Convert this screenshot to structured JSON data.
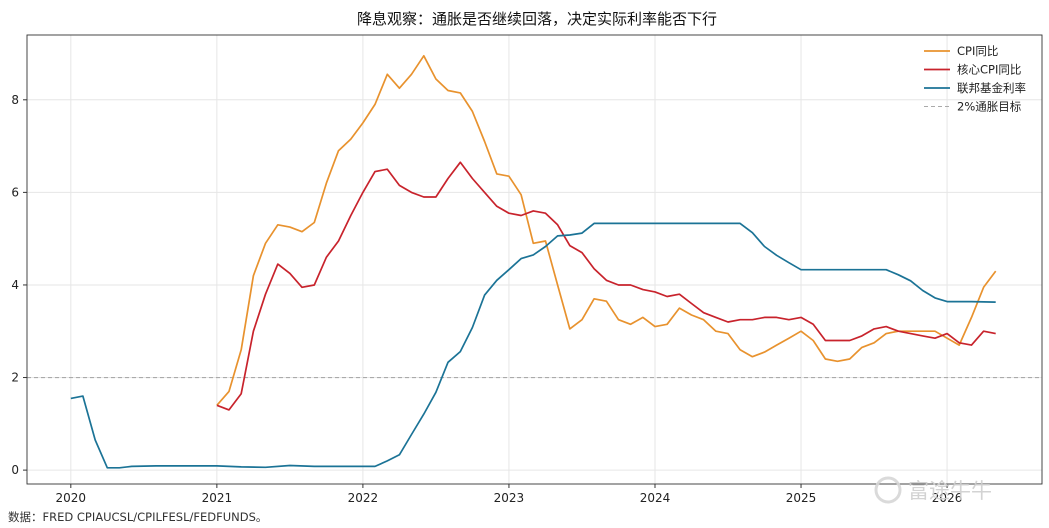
{
  "chart_data": {
    "type": "line",
    "title": "降息观察：通胀是否继续回落，决定实际利率能否下行",
    "xlabel": "",
    "ylabel": "",
    "xlim": [
      2019.7,
      2026.65
    ],
    "ylim": [
      -0.3,
      9.4
    ],
    "x_ticks": [
      "2020",
      "2021",
      "2022",
      "2023",
      "2024",
      "2025",
      "2026"
    ],
    "y_ticks": [
      "0",
      "2",
      "4",
      "6",
      "8"
    ],
    "grid": true,
    "legend_position": "top-right",
    "source": "数据：FRED CPIAUCSL/CPILFESL/FEDFUNDS。",
    "watermark": "富途牛牛",
    "series": [
      {
        "name": "CPI同比",
        "color": "#E8922E",
        "points": [
          [
            2021.0,
            1.4
          ],
          [
            2021.083,
            1.7
          ],
          [
            2021.167,
            2.6
          ],
          [
            2021.25,
            4.2
          ],
          [
            2021.333,
            4.9
          ],
          [
            2021.417,
            5.3
          ],
          [
            2021.5,
            5.25
          ],
          [
            2021.583,
            5.15
          ],
          [
            2021.667,
            5.35
          ],
          [
            2021.75,
            6.2
          ],
          [
            2021.833,
            6.9
          ],
          [
            2021.917,
            7.15
          ],
          [
            2022.0,
            7.5
          ],
          [
            2022.083,
            7.9
          ],
          [
            2022.167,
            8.55
          ],
          [
            2022.25,
            8.25
          ],
          [
            2022.333,
            8.55
          ],
          [
            2022.417,
            8.95
          ],
          [
            2022.5,
            8.45
          ],
          [
            2022.583,
            8.2
          ],
          [
            2022.667,
            8.15
          ],
          [
            2022.75,
            7.75
          ],
          [
            2022.833,
            7.1
          ],
          [
            2022.917,
            6.4
          ],
          [
            2023.0,
            6.35
          ],
          [
            2023.083,
            5.95
          ],
          [
            2023.167,
            4.9
          ],
          [
            2023.25,
            4.95
          ],
          [
            2023.333,
            4.0
          ],
          [
            2023.417,
            3.05
          ],
          [
            2023.5,
            3.25
          ],
          [
            2023.583,
            3.7
          ],
          [
            2023.667,
            3.65
          ],
          [
            2023.75,
            3.25
          ],
          [
            2023.833,
            3.15
          ],
          [
            2023.917,
            3.3
          ],
          [
            2024.0,
            3.1
          ],
          [
            2024.083,
            3.15
          ],
          [
            2024.167,
            3.5
          ],
          [
            2024.25,
            3.35
          ],
          [
            2024.333,
            3.25
          ],
          [
            2024.417,
            3.0
          ],
          [
            2024.5,
            2.95
          ],
          [
            2024.583,
            2.6
          ],
          [
            2024.667,
            2.45
          ],
          [
            2024.75,
            2.55
          ],
          [
            2024.833,
            2.7
          ],
          [
            2024.917,
            2.85
          ],
          [
            2025.0,
            3.0
          ],
          [
            2025.083,
            2.8
          ],
          [
            2025.167,
            2.4
          ],
          [
            2025.25,
            2.35
          ],
          [
            2025.333,
            2.4
          ],
          [
            2025.417,
            2.65
          ],
          [
            2025.5,
            2.75
          ],
          [
            2025.583,
            2.95
          ],
          [
            2025.667,
            3.0
          ],
          [
            2025.75,
            3.0
          ],
          [
            2025.833,
            3.0
          ],
          [
            2025.917,
            3.0
          ],
          [
            2026.0,
            2.85
          ],
          [
            2026.083,
            2.7
          ],
          [
            2026.167,
            3.3
          ],
          [
            2026.25,
            3.95
          ],
          [
            2026.333,
            4.3
          ]
        ]
      },
      {
        "name": "核心CPI同比",
        "color": "#C8232C",
        "points": [
          [
            2021.0,
            1.4
          ],
          [
            2021.083,
            1.3
          ],
          [
            2021.167,
            1.65
          ],
          [
            2021.25,
            3.0
          ],
          [
            2021.333,
            3.8
          ],
          [
            2021.417,
            4.45
          ],
          [
            2021.5,
            4.25
          ],
          [
            2021.583,
            3.95
          ],
          [
            2021.667,
            4.0
          ],
          [
            2021.75,
            4.6
          ],
          [
            2021.833,
            4.95
          ],
          [
            2021.917,
            5.5
          ],
          [
            2022.0,
            6.0
          ],
          [
            2022.083,
            6.45
          ],
          [
            2022.167,
            6.5
          ],
          [
            2022.25,
            6.15
          ],
          [
            2022.333,
            6.0
          ],
          [
            2022.417,
            5.9
          ],
          [
            2022.5,
            5.9
          ],
          [
            2022.583,
            6.3
          ],
          [
            2022.667,
            6.65
          ],
          [
            2022.75,
            6.3
          ],
          [
            2022.833,
            6.0
          ],
          [
            2022.917,
            5.7
          ],
          [
            2023.0,
            5.55
          ],
          [
            2023.083,
            5.5
          ],
          [
            2023.167,
            5.6
          ],
          [
            2023.25,
            5.55
          ],
          [
            2023.333,
            5.3
          ],
          [
            2023.417,
            4.85
          ],
          [
            2023.5,
            4.7
          ],
          [
            2023.583,
            4.35
          ],
          [
            2023.667,
            4.1
          ],
          [
            2023.75,
            4.0
          ],
          [
            2023.833,
            4.0
          ],
          [
            2023.917,
            3.9
          ],
          [
            2024.0,
            3.85
          ],
          [
            2024.083,
            3.75
          ],
          [
            2024.167,
            3.8
          ],
          [
            2024.25,
            3.6
          ],
          [
            2024.333,
            3.4
          ],
          [
            2024.417,
            3.3
          ],
          [
            2024.5,
            3.2
          ],
          [
            2024.583,
            3.25
          ],
          [
            2024.667,
            3.25
          ],
          [
            2024.75,
            3.3
          ],
          [
            2024.833,
            3.3
          ],
          [
            2024.917,
            3.25
          ],
          [
            2025.0,
            3.3
          ],
          [
            2025.083,
            3.15
          ],
          [
            2025.167,
            2.8
          ],
          [
            2025.25,
            2.8
          ],
          [
            2025.333,
            2.8
          ],
          [
            2025.417,
            2.9
          ],
          [
            2025.5,
            3.05
          ],
          [
            2025.583,
            3.1
          ],
          [
            2025.667,
            3.0
          ],
          [
            2025.75,
            2.95
          ],
          [
            2025.833,
            2.9
          ],
          [
            2025.917,
            2.85
          ],
          [
            2026.0,
            2.95
          ],
          [
            2026.083,
            2.75
          ],
          [
            2026.167,
            2.7
          ],
          [
            2026.25,
            3.0
          ],
          [
            2026.333,
            2.95
          ]
        ]
      },
      {
        "name": "联邦基金利率",
        "color": "#1B7396",
        "points": [
          [
            2020.0,
            1.55
          ],
          [
            2020.083,
            1.6
          ],
          [
            2020.167,
            0.65
          ],
          [
            2020.25,
            0.05
          ],
          [
            2020.333,
            0.05
          ],
          [
            2020.417,
            0.08
          ],
          [
            2020.583,
            0.09
          ],
          [
            2020.75,
            0.09
          ],
          [
            2020.917,
            0.09
          ],
          [
            2021.0,
            0.09
          ],
          [
            2021.167,
            0.07
          ],
          [
            2021.333,
            0.06
          ],
          [
            2021.5,
            0.1
          ],
          [
            2021.667,
            0.08
          ],
          [
            2021.833,
            0.08
          ],
          [
            2022.0,
            0.08
          ],
          [
            2022.083,
            0.08
          ],
          [
            2022.167,
            0.2
          ],
          [
            2022.25,
            0.33
          ],
          [
            2022.333,
            0.77
          ],
          [
            2022.417,
            1.21
          ],
          [
            2022.5,
            1.68
          ],
          [
            2022.583,
            2.33
          ],
          [
            2022.667,
            2.56
          ],
          [
            2022.75,
            3.08
          ],
          [
            2022.833,
            3.78
          ],
          [
            2022.917,
            4.1
          ],
          [
            2023.0,
            4.33
          ],
          [
            2023.083,
            4.57
          ],
          [
            2023.167,
            4.65
          ],
          [
            2023.25,
            4.83
          ],
          [
            2023.333,
            5.06
          ],
          [
            2023.417,
            5.08
          ],
          [
            2023.5,
            5.12
          ],
          [
            2023.583,
            5.33
          ],
          [
            2023.667,
            5.33
          ],
          [
            2024.0,
            5.33
          ],
          [
            2024.25,
            5.33
          ],
          [
            2024.5,
            5.33
          ],
          [
            2024.583,
            5.33
          ],
          [
            2024.667,
            5.13
          ],
          [
            2024.75,
            4.83
          ],
          [
            2024.833,
            4.64
          ],
          [
            2024.917,
            4.48
          ],
          [
            2025.0,
            4.33
          ],
          [
            2025.25,
            4.33
          ],
          [
            2025.5,
            4.33
          ],
          [
            2025.583,
            4.33
          ],
          [
            2025.667,
            4.22
          ],
          [
            2025.75,
            4.09
          ],
          [
            2025.833,
            3.88
          ],
          [
            2025.917,
            3.72
          ],
          [
            2026.0,
            3.64
          ],
          [
            2026.167,
            3.64
          ],
          [
            2026.333,
            3.63
          ]
        ]
      },
      {
        "name": "2%通胀目标",
        "color": "#AAAAAA",
        "dashed": true,
        "y": 2
      }
    ]
  }
}
